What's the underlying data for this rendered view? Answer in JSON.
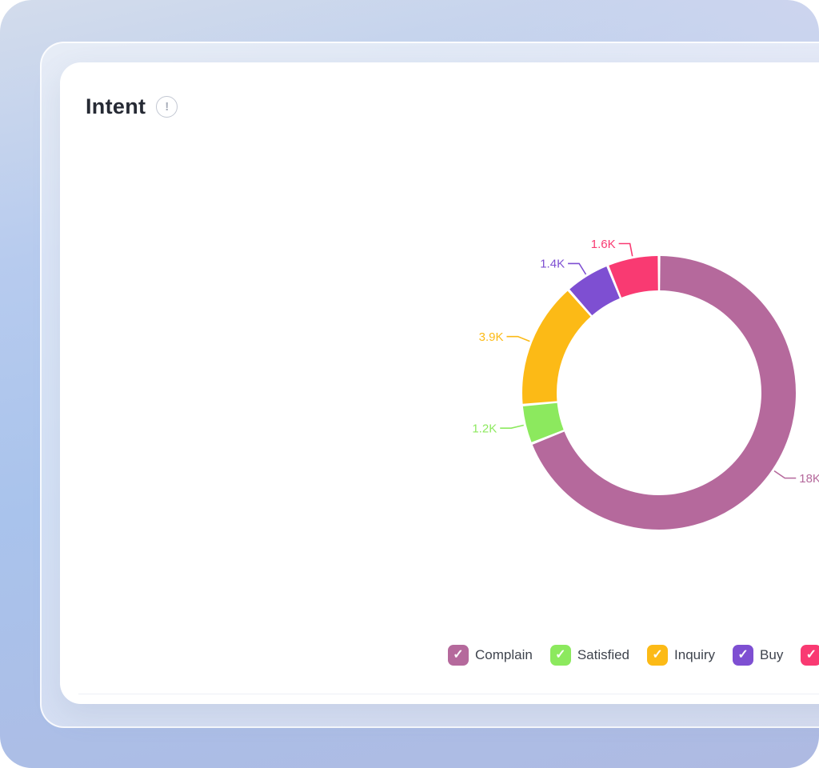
{
  "card": {
    "title": "Intent",
    "info_icon_glyph": "!"
  },
  "chart_data": {
    "type": "pie",
    "subtype": "donut",
    "title": "Intent",
    "direction": "clockwise",
    "start_angle_deg": 0,
    "legend_position": "bottom-right",
    "series": [
      {
        "name": "Complain",
        "value": 18000,
        "label": "18K",
        "color": "#b5699c"
      },
      {
        "name": "Satisfied",
        "value": 1200,
        "label": "1.2K",
        "color": "#8ce95e"
      },
      {
        "name": "Inquiry",
        "value": 3900,
        "label": "3.9K",
        "color": "#fcba16"
      },
      {
        "name": "Buy",
        "value": 1400,
        "label": "1.4K",
        "color": "#7e4fd2"
      },
      {
        "name": "",
        "value": 1600,
        "label": "1.6K",
        "color": "#f93a72",
        "clipped": true
      }
    ]
  },
  "legend": {
    "check_glyph": "✓",
    "items": [
      {
        "label": "Complain",
        "color": "#b5699c",
        "checked": true
      },
      {
        "label": "Satisfied",
        "color": "#8ce95e",
        "checked": true
      },
      {
        "label": "Inquiry",
        "color": "#fcba16",
        "checked": true
      },
      {
        "label": "Buy",
        "color": "#7e4fd2",
        "checked": true
      },
      {
        "label": "",
        "color": "#f93a72",
        "checked": true,
        "clipped": true
      }
    ]
  }
}
